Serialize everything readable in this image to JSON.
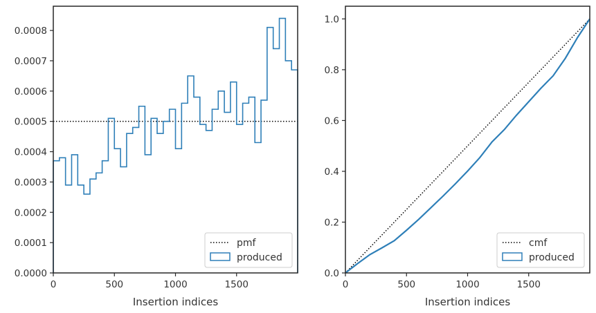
{
  "colors": {
    "series": "#2e7fb8",
    "reference": "#000000",
    "axis": "#262626"
  },
  "chart_data": [
    {
      "type": "step",
      "xlabel": "Insertion indices",
      "ylabel": "",
      "xlim": [
        0,
        2000
      ],
      "ylim": [
        0,
        0.00088
      ],
      "xticks": [
        0,
        500,
        1000,
        1500
      ],
      "xtick_labels": [
        "0",
        "500",
        "1000",
        "1500"
      ],
      "yticks": [
        0,
        0.0001,
        0.0002,
        0.0003,
        0.0004,
        0.0005,
        0.0006,
        0.0007,
        0.0008
      ],
      "ytick_labels": [
        "0.0000",
        "0.0001",
        "0.0002",
        "0.0003",
        "0.0004",
        "0.0005",
        "0.0006",
        "0.0007",
        "0.0008"
      ],
      "grid": false,
      "legend": "lower-right",
      "reference": {
        "name": "pmf",
        "value": 0.0005,
        "style": "dotted"
      },
      "series": [
        {
          "name": "produced",
          "bin_edges": [
            0,
            50,
            100,
            150,
            200,
            250,
            300,
            350,
            400,
            450,
            500,
            550,
            600,
            650,
            700,
            750,
            800,
            850,
            900,
            950,
            1000,
            1050,
            1100,
            1150,
            1200,
            1250,
            1300,
            1350,
            1400,
            1450,
            1500,
            1550,
            1600,
            1650,
            1700,
            1750,
            1800,
            1850,
            1900,
            1950,
            2000
          ],
          "values": [
            0.00037,
            0.00038,
            0.00029,
            0.00039,
            0.00029,
            0.00026,
            0.00031,
            0.00033,
            0.00037,
            0.00051,
            0.00041,
            0.00035,
            0.00046,
            0.00048,
            0.00055,
            0.00039,
            0.00051,
            0.00046,
            0.0005,
            0.00054,
            0.00041,
            0.00056,
            0.00065,
            0.00058,
            0.00049,
            0.00047,
            0.00054,
            0.0006,
            0.00053,
            0.00063,
            0.00049,
            0.00056,
            0.00058,
            0.00043,
            0.00057,
            0.00081,
            0.00074,
            0.00084,
            0.0007,
            0.00067
          ]
        }
      ]
    },
    {
      "type": "step",
      "xlabel": "Insertion indices",
      "ylabel": "",
      "xlim": [
        0,
        2000
      ],
      "ylim": [
        0,
        1.05
      ],
      "xticks": [
        0,
        500,
        1000,
        1500
      ],
      "xtick_labels": [
        "0",
        "500",
        "1000",
        "1500"
      ],
      "yticks": [
        0,
        0.2,
        0.4,
        0.6,
        0.8,
        1.0
      ],
      "ytick_labels": [
        "0.0",
        "0.2",
        "0.4",
        "0.6",
        "0.8",
        "1.0"
      ],
      "grid": false,
      "legend": "lower-right",
      "reference": {
        "name": "cmf",
        "from": [
          0,
          0
        ],
        "to": [
          2000,
          1.0
        ],
        "style": "dotted"
      },
      "series": [
        {
          "name": "produced",
          "x": [
            0,
            100,
            200,
            300,
            400,
            500,
            600,
            700,
            800,
            900,
            1000,
            1100,
            1200,
            1300,
            1400,
            1500,
            1600,
            1700,
            1800,
            1900,
            2000
          ],
          "y": [
            0,
            0.037,
            0.072,
            0.099,
            0.127,
            0.168,
            0.211,
            0.257,
            0.303,
            0.351,
            0.401,
            0.454,
            0.516,
            0.564,
            0.621,
            0.674,
            0.727,
            0.776,
            0.845,
            0.927,
            1.0
          ]
        }
      ]
    }
  ]
}
